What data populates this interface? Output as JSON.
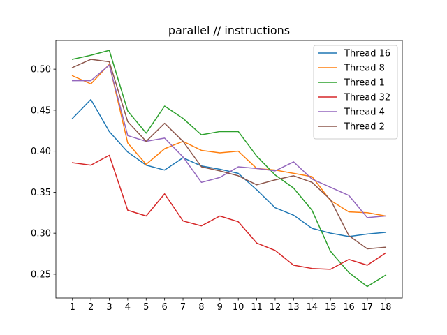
{
  "chart_data": {
    "type": "line",
    "title": "parallel // instructions",
    "xlabel": "",
    "ylabel": "",
    "x": [
      1,
      2,
      3,
      4,
      5,
      6,
      7,
      8,
      9,
      10,
      11,
      12,
      13,
      14,
      15,
      16,
      17,
      18
    ],
    "xlim": [
      0.1,
      18.9
    ],
    "ylim": [
      0.221,
      0.535
    ],
    "yticks": [
      0.25,
      0.3,
      0.35,
      0.4,
      0.45,
      0.5
    ],
    "ytick_labels": [
      "0.25",
      "0.30",
      "0.35",
      "0.40",
      "0.45",
      "0.50"
    ],
    "grid": false,
    "legend_placement": "top-right",
    "series": [
      {
        "name": "Thread 16",
        "color": "#1f77b4",
        "values": [
          0.44,
          0.463,
          0.424,
          0.399,
          0.383,
          0.377,
          0.392,
          0.382,
          0.378,
          0.373,
          0.353,
          0.331,
          0.322,
          0.306,
          0.3,
          0.296,
          0.299,
          0.301
        ]
      },
      {
        "name": "Thread 8",
        "color": "#ff7f0e",
        "values": [
          0.492,
          0.482,
          0.506,
          0.41,
          0.384,
          0.403,
          0.412,
          0.401,
          0.398,
          0.4,
          0.379,
          0.377,
          0.373,
          0.369,
          0.34,
          0.326,
          0.325,
          0.321
        ]
      },
      {
        "name": "Thread 1",
        "color": "#2ca02c",
        "values": [
          0.512,
          0.517,
          0.523,
          0.449,
          0.422,
          0.455,
          0.44,
          0.42,
          0.424,
          0.424,
          0.394,
          0.371,
          0.355,
          0.328,
          0.278,
          0.252,
          0.235,
          0.249
        ]
      },
      {
        "name": "Thread 32",
        "color": "#d62728",
        "values": [
          0.386,
          0.383,
          0.395,
          0.328,
          0.321,
          0.348,
          0.315,
          0.309,
          0.321,
          0.314,
          0.288,
          0.279,
          0.261,
          0.257,
          0.256,
          0.268,
          0.261,
          0.276
        ]
      },
      {
        "name": "Thread 4",
        "color": "#9467bd",
        "values": [
          0.486,
          0.486,
          0.505,
          0.419,
          0.412,
          0.416,
          0.393,
          0.362,
          0.368,
          0.381,
          0.379,
          0.376,
          0.387,
          0.366,
          0.356,
          0.346,
          0.319,
          0.321
        ]
      },
      {
        "name": "Thread 2",
        "color": "#8c564b",
        "values": [
          0.502,
          0.512,
          0.509,
          0.436,
          0.412,
          0.434,
          0.412,
          0.381,
          0.376,
          0.37,
          0.359,
          0.365,
          0.37,
          0.362,
          0.341,
          0.297,
          0.281,
          0.283
        ]
      }
    ]
  }
}
